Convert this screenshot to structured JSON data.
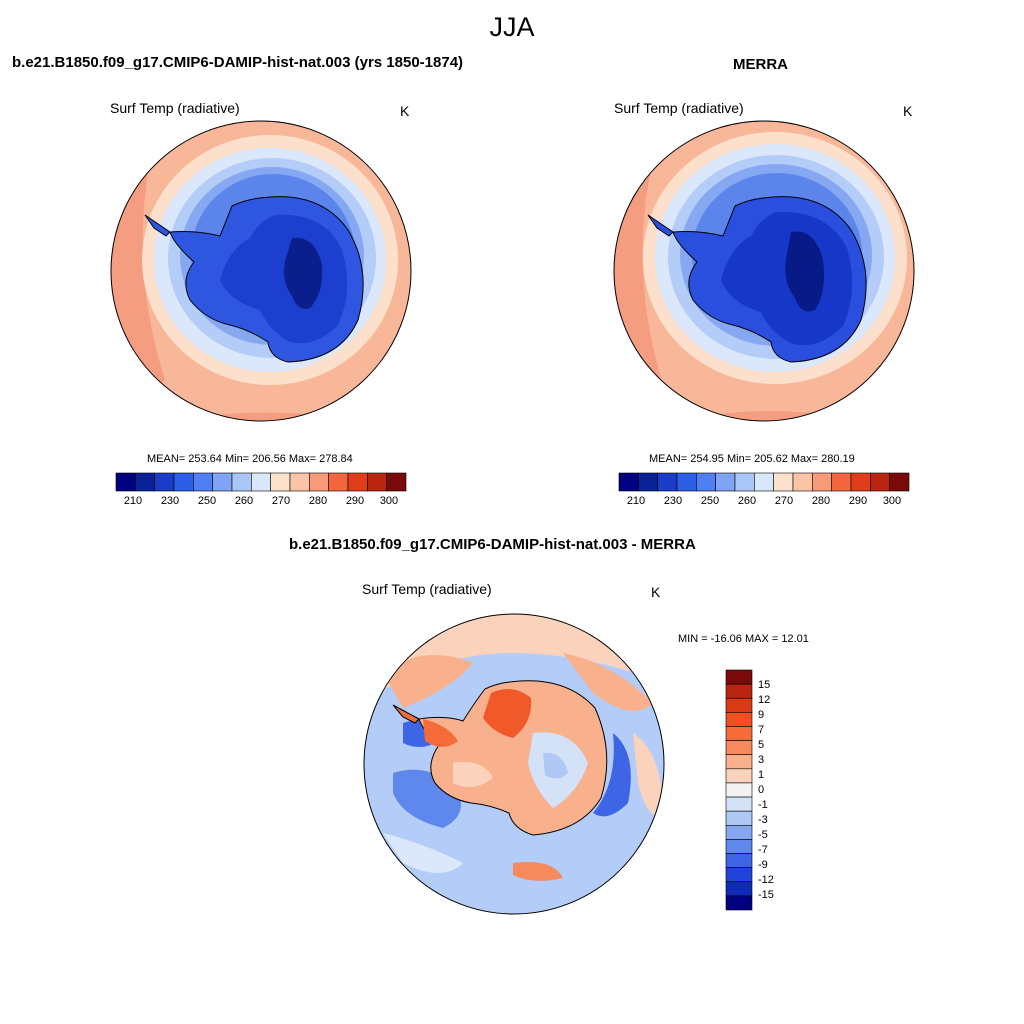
{
  "season": "JJA",
  "panels": [
    {
      "title": "b.e21.B1850.f09_g17.CMIP6-DAMIP-hist-nat.003 (yrs 1850-1874)",
      "variable": "Surf Temp (radiative)",
      "units": "K",
      "stats": "MEAN= 253.64  Min= 206.56  Max= 278.84"
    },
    {
      "title": "MERRA",
      "variable": "Surf Temp (radiative)",
      "units": "K",
      "stats": "MEAN= 254.95  Min= 205.62  Max= 280.19"
    },
    {
      "title": "b.e21.B1850.f09_g17.CMIP6-DAMIP-hist-nat.003 - MERRA",
      "variable": "Surf Temp (radiative)",
      "units": "K",
      "stats": "MIN = -16.06 MAX =  12.01"
    }
  ],
  "abs_colorbar": {
    "colors": [
      "#000080",
      "#0b2196",
      "#1a3dc8",
      "#2d5fe6",
      "#4f7ff2",
      "#7fa4f5",
      "#aac6f8",
      "#d8e7fb",
      "#fde3cc",
      "#fbc4a6",
      "#f79a78",
      "#f2663f",
      "#e03d1b",
      "#b82510",
      "#7a0a0a"
    ],
    "ticks": [
      "210",
      "230",
      "250",
      "260",
      "270",
      "280",
      "290",
      "300"
    ]
  },
  "diff_colorbar": {
    "colors": [
      "#7a0a0a",
      "#b82510",
      "#d93a15",
      "#f0501f",
      "#f56b3a",
      "#f78a5c",
      "#f9b08d",
      "#fbd3bc",
      "#f3f3f3",
      "#d3e2f7",
      "#adc8f4",
      "#86a8f0",
      "#5f88ec",
      "#3d65e6",
      "#1f44d8",
      "#0f2cb8",
      "#000080"
    ],
    "ticks": [
      "15",
      "12",
      "9",
      "7",
      "5",
      "3",
      "1",
      "0",
      "-1",
      "-3",
      "-5",
      "-7",
      "-9",
      "-12",
      "-15"
    ]
  }
}
